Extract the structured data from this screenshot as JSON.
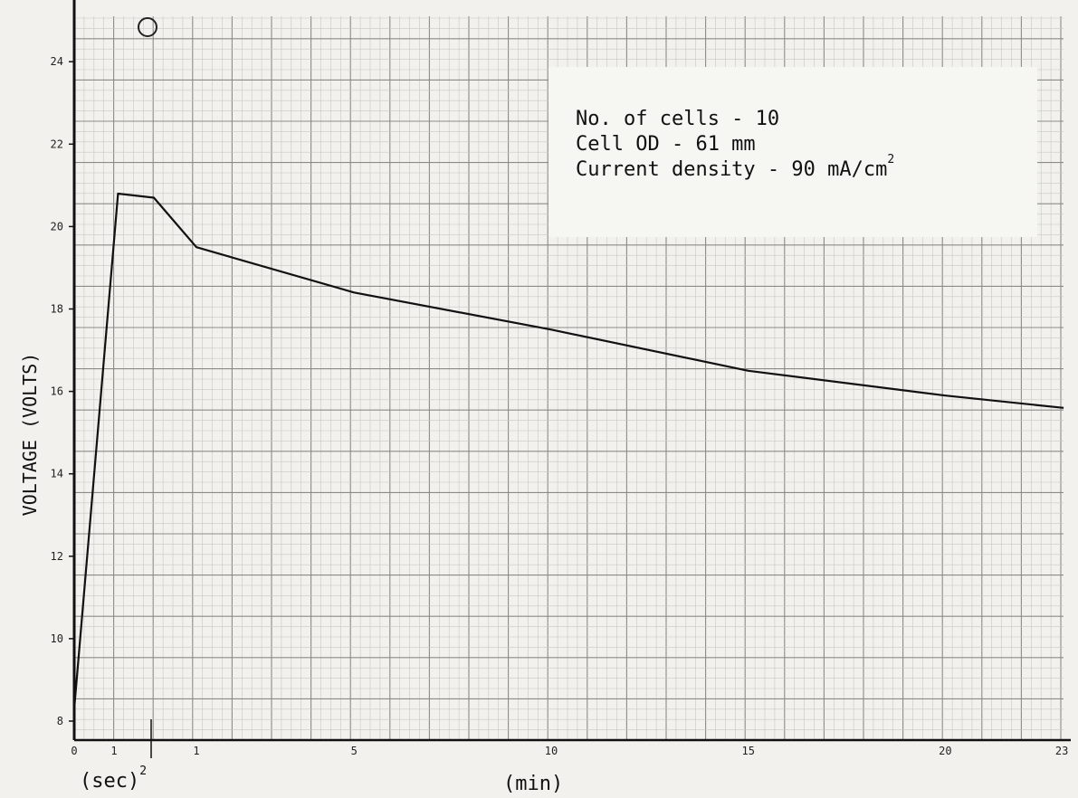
{
  "chart_data": {
    "type": "line",
    "title": "",
    "ylabel": "VOLTAGE (VOLTS)",
    "xlabel": "",
    "ylim": [
      8,
      25
    ],
    "x_axis": {
      "segments": [
        {
          "unit": "sec",
          "range": [
            0,
            2
          ],
          "ticks": [
            "0",
            "1",
            "2"
          ],
          "label": "(sec)"
        },
        {
          "unit": "min",
          "range": [
            0,
            23
          ],
          "ticks": [
            "1",
            "5",
            "10",
            "15",
            "20",
            "23"
          ],
          "label": "(min)"
        }
      ]
    },
    "y_ticks": [
      "8",
      "10",
      "12",
      "14",
      "16",
      "18",
      "20",
      "22",
      "24"
    ],
    "grid": true,
    "legend_position": "top-right",
    "annotations": [
      "No. of cells - 10",
      "Cell OD - 61 mm",
      "Current density - 90 mA/cm"
    ],
    "annotation_superscript": "2",
    "series": [
      {
        "points": [
          {
            "unit": "sec",
            "x": 0,
            "y": 8.3
          },
          {
            "unit": "sec",
            "x": 1.1,
            "y": 20.8
          },
          {
            "unit": "sec",
            "x": 2.0,
            "y": 20.7
          },
          {
            "unit": "min",
            "x": 1,
            "y": 19.5
          },
          {
            "unit": "min",
            "x": 5,
            "y": 18.4
          },
          {
            "unit": "min",
            "x": 10,
            "y": 17.5
          },
          {
            "unit": "min",
            "x": 15,
            "y": 16.5
          },
          {
            "unit": "min",
            "x": 20,
            "y": 15.9
          },
          {
            "unit": "min",
            "x": 23,
            "y": 15.6
          }
        ]
      }
    ]
  }
}
